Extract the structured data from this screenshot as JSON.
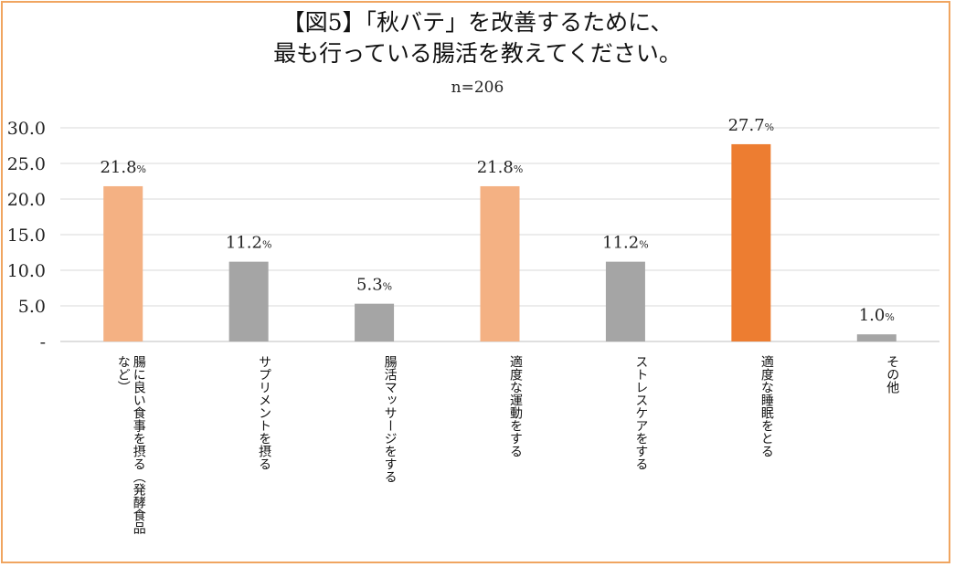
{
  "title_line1": "【図5】「秋バテ」を改善するために、",
  "title_line2": "最も行っている腸活を教えてください。",
  "subtitle": "n=206",
  "colors": {
    "highlight": "#f4b183",
    "max": "#ed7d31",
    "other": "#a5a5a5",
    "border": "#f0a560",
    "grid": "#d9d9d9"
  },
  "chart_data": {
    "type": "bar",
    "title": "【図5】「秋バテ」を改善するために、最も行っている腸活を教えてください。",
    "subtitle": "n=206",
    "categories": [
      "腸に良い食事を摂る（発酵食品など）",
      "サプリメントを摂る",
      "腸活マッサージをする",
      "適度な運動をする",
      "ストレスケアをする",
      "適度な睡眠をとる",
      "その他"
    ],
    "category_lines": [
      [
        "腸に良い食事を摂る（発酵食品",
        "など）"
      ],
      [
        "サプリメントを摂る"
      ],
      [
        "腸活マッサージをする"
      ],
      [
        "適度な運動をする"
      ],
      [
        "ストレスケアをする"
      ],
      [
        "適度な睡眠をとる"
      ],
      [
        "その他"
      ]
    ],
    "values": [
      21.8,
      11.2,
      5.3,
      21.8,
      11.2,
      27.7,
      1.0
    ],
    "value_labels": [
      "21.8",
      "11.2",
      "5.3",
      "21.8",
      "11.2",
      "27.7",
      "1.0"
    ],
    "value_suffix": "%",
    "bar_color_keys": [
      "highlight",
      "other",
      "other",
      "highlight",
      "other",
      "max",
      "other"
    ],
    "ylim": [
      0,
      30
    ],
    "yticks": [
      0,
      5,
      10,
      15,
      20,
      25,
      30
    ],
    "ytick_labels": [
      "-",
      "5.0",
      "10.0",
      "15.0",
      "20.0",
      "25.0",
      "30.0"
    ],
    "grid": true,
    "xlabel": "",
    "ylabel": ""
  }
}
